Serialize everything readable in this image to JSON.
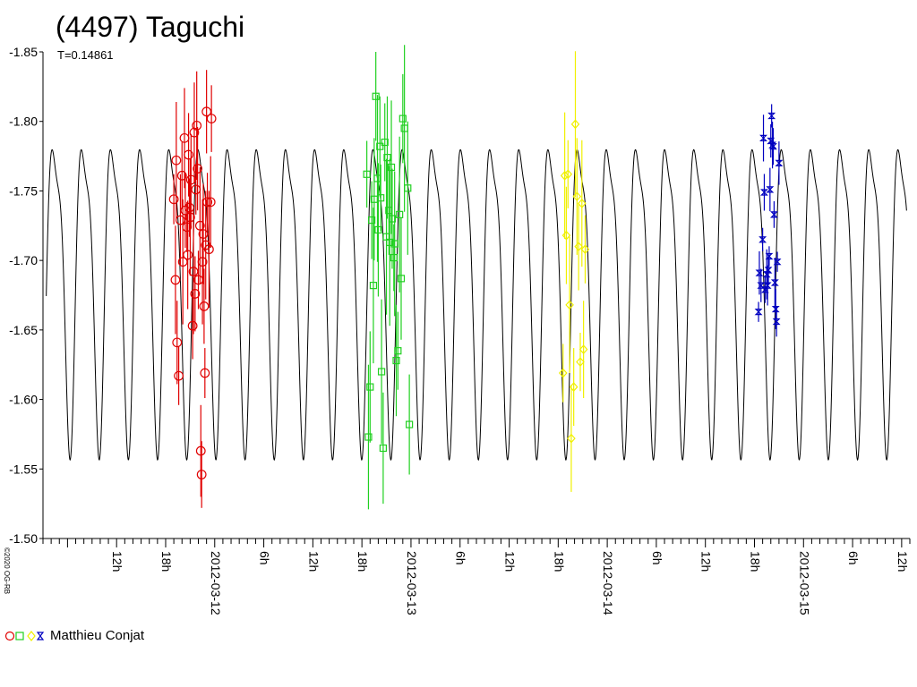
{
  "chart_data": {
    "type": "scatter",
    "title": "(4497) Taguchi",
    "subtitle": "T=0.14861",
    "copyright": "©2020 OG-RB",
    "xlabel": "",
    "ylabel": "",
    "y_axis_inverted": true,
    "ylim": [
      -1.5,
      -1.85
    ],
    "y_ticks": [
      "-1.85",
      "-1.80",
      "-1.75",
      "-1.70",
      "-1.65",
      "-1.60",
      "-1.55",
      "-1.50"
    ],
    "x_range_hours": [
      3,
      109
    ],
    "x_tick_labels": [
      {
        "hour": 12,
        "label": "12h"
      },
      {
        "hour": 18,
        "label": "18h"
      },
      {
        "hour": 24,
        "label": "2012-03-12"
      },
      {
        "hour": 30,
        "label": "6h"
      },
      {
        "hour": 36,
        "label": "12h"
      },
      {
        "hour": 42,
        "label": "18h"
      },
      {
        "hour": 48,
        "label": "2012-03-13"
      },
      {
        "hour": 54,
        "label": "6h"
      },
      {
        "hour": 60,
        "label": "12h"
      },
      {
        "hour": 66,
        "label": "18h"
      },
      {
        "hour": 72,
        "label": "2012-03-14"
      },
      {
        "hour": 78,
        "label": "6h"
      },
      {
        "hour": 84,
        "label": "12h"
      },
      {
        "hour": 90,
        "label": "18h"
      },
      {
        "hour": 96,
        "label": "2012-03-15"
      },
      {
        "hour": 102,
        "label": "6h"
      },
      {
        "hour": 108,
        "label": "12h"
      }
    ],
    "model_curve": {
      "period_hours": 3.5664,
      "mean": -1.69,
      "amplitude_primary": 0.105,
      "amplitude_secondary": 0.03,
      "color": "#000000"
    },
    "legend": {
      "label": "Matthieu Conjat",
      "position": "bottom-left"
    },
    "series": [
      {
        "marker": "circle",
        "color": "#e00000",
        "points": [
          [
            19.0,
            -1.744
          ],
          [
            19.2,
            -1.686
          ],
          [
            19.4,
            -1.641
          ],
          [
            19.6,
            -1.617
          ],
          [
            19.3,
            -1.772
          ],
          [
            19.8,
            -1.729
          ],
          [
            20.0,
            -1.761
          ],
          [
            20.1,
            -1.699
          ],
          [
            20.3,
            -1.788
          ],
          [
            20.4,
            -1.736
          ],
          [
            20.6,
            -1.724
          ],
          [
            20.7,
            -1.704
          ],
          [
            20.8,
            -1.776
          ],
          [
            20.9,
            -1.738
          ],
          [
            21.0,
            -1.731
          ],
          [
            21.1,
            -1.758
          ],
          [
            21.3,
            -1.653
          ],
          [
            21.4,
            -1.692
          ],
          [
            21.5,
            -1.792
          ],
          [
            21.6,
            -1.676
          ],
          [
            21.7,
            -1.751
          ],
          [
            21.8,
            -1.797
          ],
          [
            21.9,
            -1.766
          ],
          [
            22.0,
            -1.686
          ],
          [
            22.2,
            -1.725
          ],
          [
            22.3,
            -1.563
          ],
          [
            22.4,
            -1.546
          ],
          [
            22.5,
            -1.699
          ],
          [
            22.6,
            -1.719
          ],
          [
            22.7,
            -1.667
          ],
          [
            22.8,
            -1.619
          ],
          [
            22.9,
            -1.711
          ],
          [
            23.0,
            -1.807
          ],
          [
            23.1,
            -1.742
          ],
          [
            23.3,
            -1.708
          ],
          [
            23.5,
            -1.742
          ],
          [
            23.6,
            -1.802
          ]
        ],
        "err": 0.03
      },
      {
        "marker": "square",
        "color": "#20d020",
        "points": [
          [
            42.6,
            -1.762
          ],
          [
            42.8,
            -1.573
          ],
          [
            43.0,
            -1.609
          ],
          [
            43.2,
            -1.729
          ],
          [
            43.4,
            -1.682
          ],
          [
            43.5,
            -1.744
          ],
          [
            43.7,
            -1.818
          ],
          [
            43.9,
            -1.759
          ],
          [
            44.0,
            -1.722
          ],
          [
            44.2,
            -1.782
          ],
          [
            44.3,
            -1.745
          ],
          [
            44.4,
            -1.62
          ],
          [
            44.6,
            -1.565
          ],
          [
            44.8,
            -1.785
          ],
          [
            45.0,
            -1.717
          ],
          [
            45.1,
            -1.774
          ],
          [
            45.3,
            -1.736
          ],
          [
            45.4,
            -1.713
          ],
          [
            45.6,
            -1.767
          ],
          [
            45.7,
            -1.73
          ],
          [
            45.9,
            -1.702
          ],
          [
            46.0,
            -1.712
          ],
          [
            46.2,
            -1.628
          ],
          [
            46.4,
            -1.635
          ],
          [
            46.6,
            -1.733
          ],
          [
            46.8,
            -1.687
          ],
          [
            47.0,
            -1.802
          ],
          [
            47.2,
            -1.795
          ],
          [
            47.6,
            -1.752
          ],
          [
            47.8,
            -1.582
          ]
        ],
        "err": 0.04
      },
      {
        "marker": "diamond",
        "color": "#f0f000",
        "points": [
          [
            66.6,
            -1.619
          ],
          [
            66.8,
            -1.761
          ],
          [
            67.0,
            -1.718
          ],
          [
            67.2,
            -1.762
          ],
          [
            67.4,
            -1.668
          ],
          [
            67.6,
            -1.572
          ],
          [
            67.9,
            -1.609
          ],
          [
            68.1,
            -1.798
          ],
          [
            68.3,
            -1.746
          ],
          [
            68.5,
            -1.71
          ],
          [
            68.7,
            -1.627
          ],
          [
            68.9,
            -1.741
          ],
          [
            69.1,
            -1.636
          ],
          [
            69.3,
            -1.708
          ]
        ],
        "err": 0.035
      },
      {
        "marker": "hourglass",
        "color": "#0000c0",
        "points": [
          [
            90.5,
            -1.663
          ],
          [
            90.6,
            -1.691
          ],
          [
            90.8,
            -1.682
          ],
          [
            91.0,
            -1.715
          ],
          [
            91.1,
            -1.788
          ],
          [
            91.2,
            -1.749
          ],
          [
            91.3,
            -1.679
          ],
          [
            91.5,
            -1.69
          ],
          [
            91.6,
            -1.682
          ],
          [
            91.7,
            -1.693
          ],
          [
            91.8,
            -1.703
          ],
          [
            91.9,
            -1.751
          ],
          [
            92.0,
            -1.786
          ],
          [
            92.1,
            -1.804
          ],
          [
            92.2,
            -1.783
          ],
          [
            92.3,
            -1.782
          ],
          [
            92.4,
            -1.733
          ],
          [
            92.5,
            -1.684
          ],
          [
            92.6,
            -1.665
          ],
          [
            92.7,
            -1.656
          ],
          [
            92.8,
            -1.699
          ],
          [
            93.0,
            -1.77
          ]
        ],
        "err": 0.012
      }
    ]
  }
}
